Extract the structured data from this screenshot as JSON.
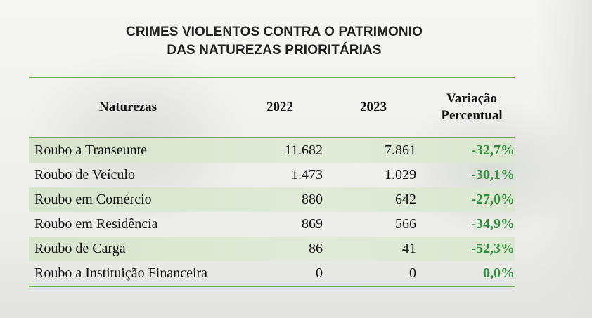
{
  "title": {
    "line1": "CRIMES VIOLENTOS CONTRA O PATRIMONIO",
    "line2": "DAS NATUREZAS PRIORITÁRIAS"
  },
  "table": {
    "headers": {
      "naturezas": "Naturezas",
      "y2022": "2022",
      "y2023": "2023",
      "variacao_1": "Variação",
      "variacao_2": "Percentual"
    },
    "rows": [
      {
        "natureza": "Roubo a Transeunte",
        "y2022": "11.682",
        "y2023": "7.861",
        "variacao": "-32,7%"
      },
      {
        "natureza": "Roubo de Veículo",
        "y2022": "1.473",
        "y2023": "1.029",
        "variacao": "-30,1%"
      },
      {
        "natureza": "Roubo em Comércio",
        "y2022": "880",
        "y2023": "642",
        "variacao": "-27,0%"
      },
      {
        "natureza": "Roubo em Residência",
        "y2022": "869",
        "y2023": "566",
        "variacao": "-34,9%"
      },
      {
        "natureza": "Roubo de Carga",
        "y2022": "86",
        "y2023": "41",
        "variacao": "-52,3%"
      },
      {
        "natureza": "Roubo a Instituição Financeira",
        "y2022": "0",
        "y2023": "0",
        "variacao": "0,0%"
      }
    ]
  },
  "colors": {
    "accent_green": "#6aa84f",
    "variation_green": "#2e8b3a",
    "row_shade": "#d7e4cc"
  }
}
